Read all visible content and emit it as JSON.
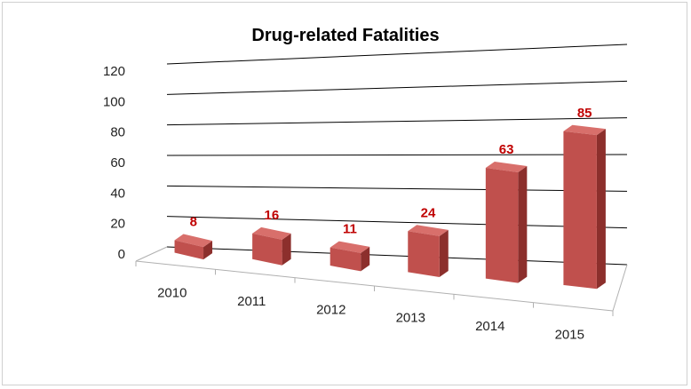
{
  "chart_data": {
    "type": "bar",
    "title": "Drug-related Fatalities",
    "categories": [
      "2010",
      "2011",
      "2012",
      "2013",
      "2014",
      "2015"
    ],
    "values": [
      8,
      16,
      11,
      24,
      63,
      85
    ],
    "data_labels": [
      "8",
      "16",
      "11",
      "24",
      "63",
      "85"
    ],
    "y_ticks": [
      "0",
      "20",
      "40",
      "60",
      "80",
      "100",
      "120"
    ],
    "ylim": [
      0,
      120
    ],
    "grid": true,
    "legend": "none",
    "style": "3d-perspective",
    "colors": {
      "front": "#c0504d",
      "side": "#8c2f2c",
      "top": "#d86f6b",
      "label": "#c00000"
    }
  }
}
